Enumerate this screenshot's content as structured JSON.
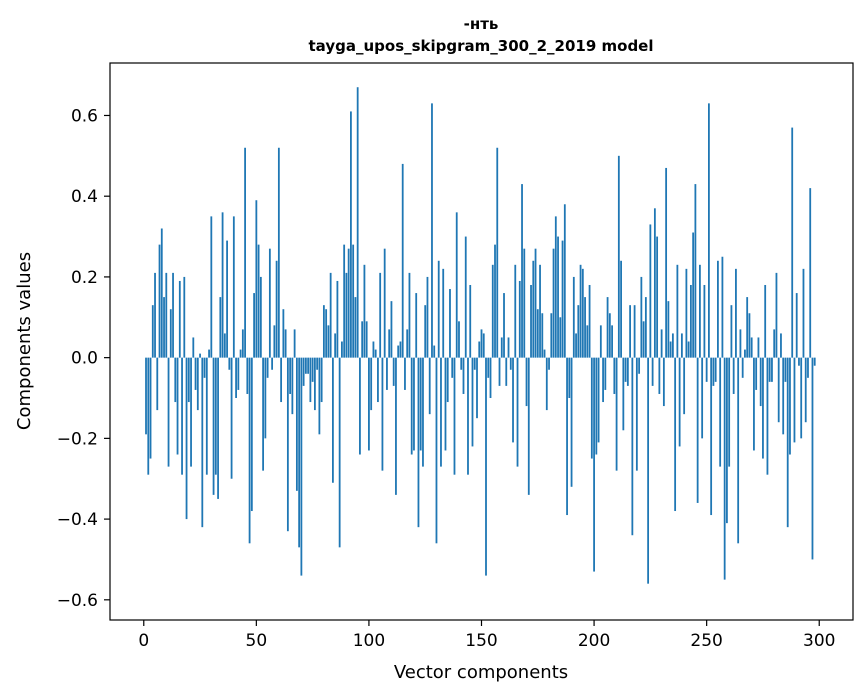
{
  "chart_data": {
    "type": "bar",
    "title": "-нть",
    "subtitle": "tayga_upos_skipgram_300_2_2019 model",
    "xlabel": "Vector components",
    "ylabel": "Components values",
    "xlim": [
      -15,
      315
    ],
    "ylim": [
      -0.65,
      0.73
    ],
    "xticks": [
      0,
      50,
      100,
      150,
      200,
      250,
      300
    ],
    "yticks": [
      -0.6,
      -0.4,
      -0.2,
      0.0,
      0.2,
      0.4,
      0.6
    ],
    "xtick_labels": [
      "0",
      "50",
      "100",
      "150",
      "200",
      "250",
      "300"
    ],
    "ytick_labels": [
      "−0.6",
      "−0.4",
      "−0.2",
      "0.0",
      "0.2",
      "0.4",
      "0.6"
    ],
    "bar_color": "#1f77b4",
    "grid": false,
    "series": [
      {
        "values": [
          -0.19,
          -0.29,
          -0.25,
          0.13,
          0.21,
          -0.13,
          0.28,
          0.32,
          0.15,
          0.21,
          -0.27,
          0.12,
          0.21,
          -0.11,
          -0.24,
          0.19,
          -0.29,
          0.2,
          -0.4,
          -0.11,
          -0.27,
          0.05,
          -0.08,
          -0.13,
          0.01,
          -0.42,
          -0.05,
          -0.29,
          0.02,
          0.35,
          -0.34,
          -0.29,
          -0.35,
          0.15,
          0.36,
          0.06,
          0.29,
          -0.03,
          -0.3,
          0.35,
          -0.1,
          -0.08,
          0.02,
          0.07,
          0.52,
          -0.09,
          -0.46,
          -0.38,
          0.16,
          0.39,
          0.28,
          0.2,
          -0.28,
          -0.2,
          -0.05,
          0.27,
          -0.03,
          0.08,
          0.24,
          0.52,
          -0.11,
          0.12,
          0.07,
          -0.43,
          -0.09,
          -0.14,
          0.07,
          -0.33,
          -0.47,
          -0.54,
          -0.07,
          -0.04,
          -0.04,
          -0.11,
          -0.06,
          -0.13,
          -0.03,
          -0.19,
          -0.11,
          0.13,
          0.12,
          0.08,
          0.21,
          -0.31,
          0.06,
          0.19,
          -0.47,
          0.04,
          0.28,
          0.21,
          0.27,
          0.61,
          0.28,
          0.15,
          0.67,
          -0.24,
          0.09,
          0.23,
          0.09,
          -0.23,
          -0.13,
          0.04,
          0.02,
          -0.11,
          0.21,
          -0.28,
          0.27,
          -0.08,
          0.07,
          0.14,
          -0.07,
          -0.34,
          0.03,
          0.04,
          0.48,
          -0.08,
          0.07,
          0.21,
          -0.24,
          -0.23,
          0.16,
          -0.42,
          -0.23,
          -0.27,
          0.13,
          0.2,
          -0.14,
          0.63,
          0.03,
          -0.46,
          0.24,
          -0.27,
          0.22,
          -0.23,
          -0.11,
          0.17,
          -0.05,
          -0.29,
          0.36,
          0.09,
          -0.03,
          -0.09,
          0.3,
          -0.29,
          0.18,
          -0.22,
          -0.03,
          -0.15,
          0.04,
          0.07,
          0.06,
          -0.54,
          -0.05,
          -0.1,
          0.23,
          0.28,
          0.52,
          -0.07,
          0.05,
          0.16,
          -0.07,
          0.05,
          -0.03,
          -0.21,
          0.23,
          -0.27,
          0.19,
          0.43,
          0.27,
          -0.12,
          -0.34,
          0.18,
          0.24,
          0.27,
          0.12,
          0.23,
          0.11,
          0.02,
          -0.13,
          -0.03,
          0.11,
          0.27,
          0.35,
          0.3,
          0.1,
          0.29,
          0.38,
          -0.39,
          -0.1,
          -0.32,
          0.2,
          0.06,
          0.13,
          0.23,
          0.22,
          0.15,
          0.08,
          0.18,
          -0.25,
          -0.53,
          -0.24,
          -0.21,
          0.08,
          -0.11,
          -0.08,
          0.15,
          0.11,
          0.08,
          -0.09,
          -0.28,
          0.5,
          0.24,
          -0.18,
          -0.06,
          -0.07,
          0.13,
          -0.44,
          0.13,
          -0.28,
          -0.04,
          0.2,
          0.09,
          0.15,
          -0.56,
          0.33,
          -0.07,
          0.37,
          0.3,
          -0.09,
          0.07,
          -0.12,
          0.47,
          0.14,
          0.04,
          0.06,
          -0.38,
          0.23,
          -0.22,
          0.06,
          -0.14,
          0.22,
          0.04,
          0.18,
          0.31,
          0.43,
          -0.36,
          0.23,
          -0.2,
          0.18,
          -0.06,
          0.63,
          -0.39,
          -0.07,
          -0.06,
          0.24,
          -0.27,
          0.25,
          -0.55,
          -0.41,
          -0.27,
          0.13,
          -0.09,
          0.22,
          -0.46,
          0.07,
          -0.05,
          0.02,
          0.15,
          0.11,
          0.05,
          -0.23,
          -0.08,
          0.05,
          -0.12,
          -0.25,
          0.18,
          -0.29,
          -0.06,
          -0.06,
          0.07,
          0.21,
          -0.16,
          0.06,
          -0.19,
          -0.06,
          -0.42,
          -0.24,
          0.57,
          -0.21,
          0.16,
          -0.02,
          -0.2,
          0.22,
          -0.16,
          -0.05,
          0.42,
          -0.5,
          -0.02
        ]
      }
    ]
  }
}
